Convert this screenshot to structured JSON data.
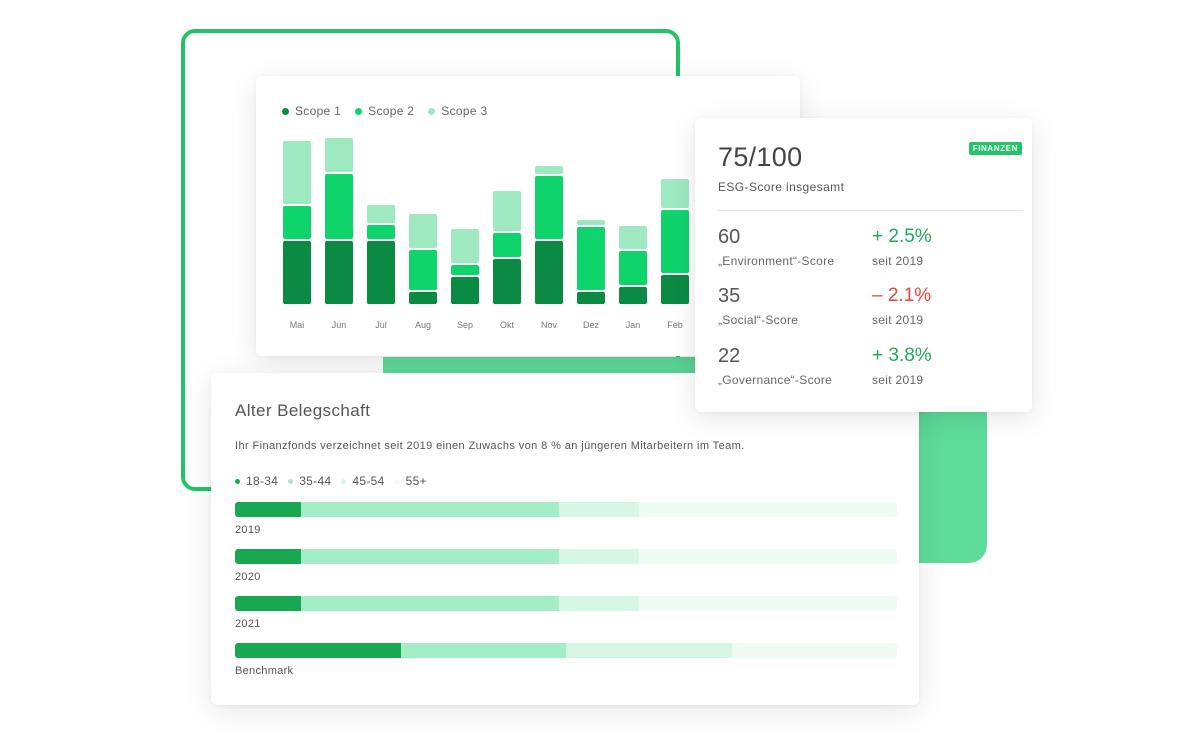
{
  "colors": {
    "scope1": "#0b8a43",
    "scope2": "#0fd46c",
    "scope3": "#9ee9c0",
    "age_18_34": "#17a851",
    "age_35_44": "#a3eec7",
    "age_45_54": "#d6f7e5",
    "age_55_plus": "#eefcf4",
    "positive": "#22a85a",
    "negative": "#e0473b"
  },
  "chart_data": [
    {
      "type": "bar",
      "stacked": true,
      "legend": [
        "Scope 1",
        "Scope 2",
        "Scope 3"
      ],
      "categories": [
        "Mai",
        "Jun",
        "Jul",
        "Aug",
        "Sep",
        "Okt",
        "Nov",
        "Dez",
        "Jan",
        "Feb"
      ],
      "series": [
        {
          "name": "Scope 1",
          "values": [
            65,
            65,
            65,
            14,
            29,
            47,
            65,
            14,
            19,
            31
          ]
        },
        {
          "name": "Scope 2",
          "values": [
            35,
            67,
            16,
            42,
            12,
            26,
            65,
            65,
            36,
            65
          ]
        },
        {
          "name": "Scope 3",
          "values": [
            65,
            36,
            20,
            36,
            36,
            42,
            10,
            7,
            25,
            31
          ]
        }
      ],
      "title": "",
      "xlabel": "",
      "ylabel": "",
      "ylim": [
        0,
        170
      ],
      "grid": false
    },
    {
      "type": "bar",
      "stacked": true,
      "orientation": "horizontal",
      "title": "Alter Belegschaft",
      "legend": [
        "18-34",
        "35-44",
        "45-54",
        "55+"
      ],
      "categories": [
        "2019",
        "2020",
        "2021",
        "Benchmark"
      ],
      "series": [
        {
          "name": "18-34",
          "values": [
            10,
            10,
            10,
            25
          ]
        },
        {
          "name": "35-44",
          "values": [
            39,
            39,
            39,
            25
          ]
        },
        {
          "name": "45-54",
          "values": [
            12,
            12,
            12,
            25
          ]
        },
        {
          "name": "55+",
          "values": [
            39,
            39,
            39,
            25
          ]
        }
      ],
      "unit": "%"
    }
  ],
  "esg": {
    "score": "75/100",
    "score_label": "ESG-Score insgesamt",
    "badge": "FINANZEN",
    "items": [
      {
        "value": "60",
        "name": "„Environment“-Score",
        "change": "+ 2.5%",
        "since": "seit 2019",
        "trend": "positive"
      },
      {
        "value": "35",
        "name": "„Social“-Score",
        "change": "– 2.1%",
        "since": "seit 2019",
        "trend": "negative"
      },
      {
        "value": "22",
        "name": "„Governance“-Score",
        "change": "+ 3.8%",
        "since": "seit 2019",
        "trend": "positive"
      }
    ]
  },
  "age": {
    "title": "Alter Belegschaft",
    "description": "Ihr Finanzfonds verzeichnet seit 2019 einen Zuwachs von 8 % an jüngeren Mitarbeitern im Team."
  }
}
